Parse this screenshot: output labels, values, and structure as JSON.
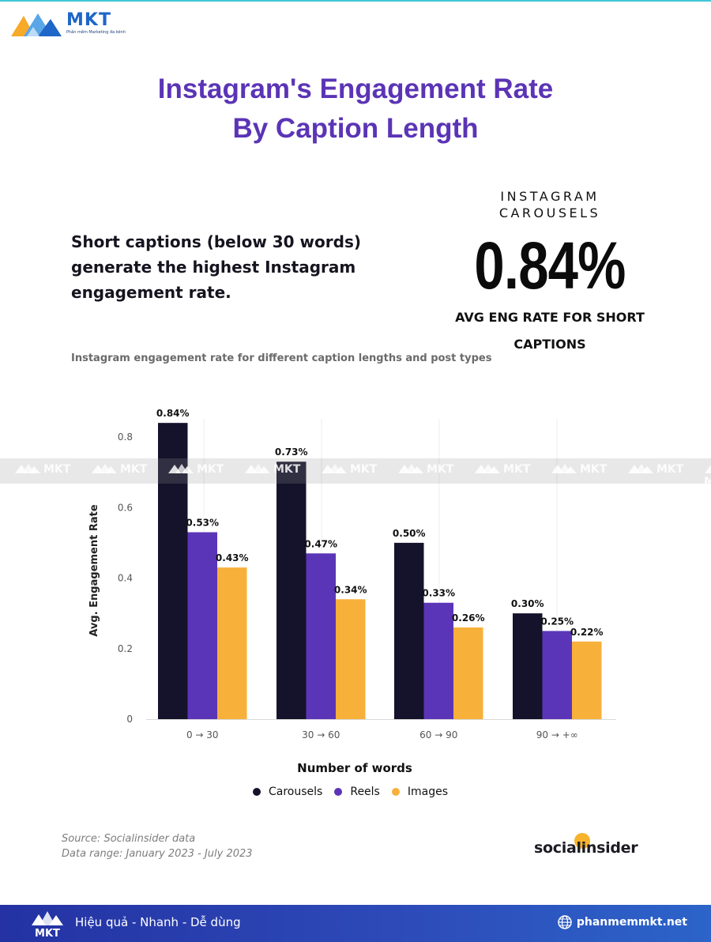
{
  "brand_logo": {
    "name": "MKT",
    "tagline": "Phần mềm Marketing đa kênh"
  },
  "title_lines": [
    "Instagram's Engagement Rate",
    "By Caption Length"
  ],
  "lead_text": "Short captions (below 30 words) generate the highest Instagram engagement rate.",
  "highlight": {
    "kicker_lines": [
      "INSTAGRAM",
      "CAROUSELS"
    ],
    "value": "0.84%",
    "caption_lines": [
      "AVG ENG RATE FOR SHORT",
      "CAPTIONS"
    ]
  },
  "chart_subtitle": "Instagram engagement rate for different caption lengths and post types",
  "watermark_text": "MKT",
  "chart_data": {
    "type": "bar",
    "categories": [
      "0 → 30",
      "30 → 60",
      "60 → 90",
      "90 → +∞"
    ],
    "series": [
      {
        "name": "Carousels",
        "values": [
          0.84,
          0.73,
          0.5,
          0.3
        ],
        "labels": [
          "0.84%",
          "0.73%",
          "0.50%",
          "0.30%"
        ],
        "color": "#15132b"
      },
      {
        "name": "Reels",
        "values": [
          0.53,
          0.47,
          0.33,
          0.25
        ],
        "labels": [
          "0.53%",
          "0.47%",
          "0.33%",
          "0.25%"
        ],
        "color": "#5b35b8"
      },
      {
        "name": "Images",
        "values": [
          0.43,
          0.34,
          0.26,
          0.22
        ],
        "labels": [
          "0.43%",
          "0.34%",
          "0.26%",
          "0.22%"
        ],
        "color": "#f7b03a"
      }
    ],
    "xlabel": "Number of words",
    "ylabel": "Avg. Engagement Rate",
    "yticks": [
      0,
      0.2,
      0.4,
      0.6,
      0.8
    ],
    "ytick_labels": [
      "0",
      "0.2",
      "0.4",
      "0.6",
      "0.8"
    ],
    "ylim": [
      0,
      0.85
    ],
    "grid": "vertical",
    "legend_position": "bottom"
  },
  "source_lines": [
    "Source: Socialinsider data",
    "Data range: January 2023 - July 2023"
  ],
  "source_brand": "socialinsider",
  "footer": {
    "slogan": "Hiệu quả - Nhanh - Dễ dùng",
    "website": "phanmemmkt.net"
  },
  "colors": {
    "title": "#5b34b6",
    "footer": "#2a3fb0",
    "accent": "#f7b32b"
  }
}
